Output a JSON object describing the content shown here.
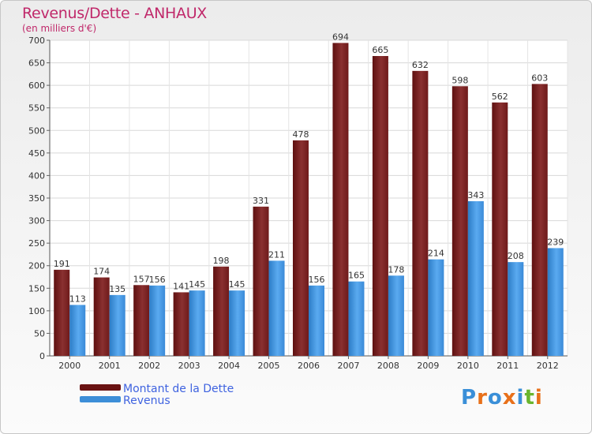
{
  "title": "Revenus/Dette - ANHAUX",
  "subtitle": "(en milliers d'€)",
  "colors": {
    "debt": "#7a2323",
    "revenue": "#3d8ed8",
    "title": "#c0286a",
    "legend_text": "#3f63e0"
  },
  "legend": [
    {
      "label": "Montant de la Dette",
      "color": "#6a1313"
    },
    {
      "label": "Revenus",
      "color": "#3d8ed8"
    }
  ],
  "logo": {
    "text": "Proxiti"
  },
  "chart_data": {
    "type": "bar",
    "title": "Revenus/Dette - ANHAUX",
    "ylabel": "(en milliers d'€)",
    "xlabel": "",
    "ylim": [
      0,
      700
    ],
    "yticks": [
      0,
      50,
      100,
      150,
      200,
      250,
      300,
      350,
      400,
      450,
      500,
      550,
      600,
      650,
      700
    ],
    "grid": true,
    "legend_position": "bottom-left",
    "categories": [
      "2000",
      "2001",
      "2002",
      "2003",
      "2004",
      "2005",
      "2006",
      "2007",
      "2008",
      "2009",
      "2010",
      "2011",
      "2012"
    ],
    "series": [
      {
        "name": "Montant de la Dette",
        "values": [
          191,
          174,
          157,
          141,
          198,
          331,
          478,
          694,
          665,
          632,
          598,
          562,
          603
        ]
      },
      {
        "name": "Revenus",
        "values": [
          113,
          135,
          156,
          145,
          145,
          211,
          156,
          165,
          178,
          214,
          343,
          208,
          239
        ]
      }
    ]
  }
}
